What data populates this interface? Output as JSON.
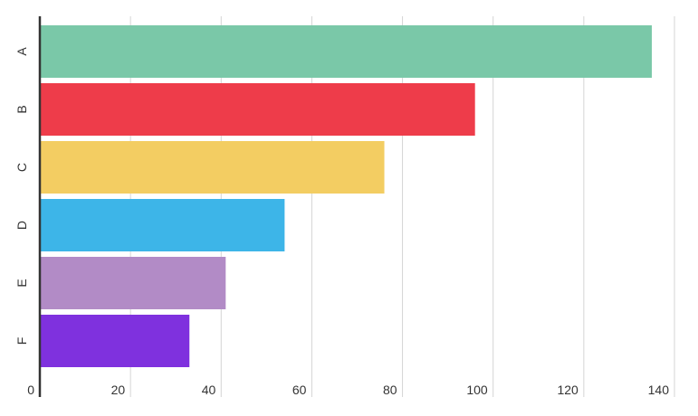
{
  "chart_data": {
    "type": "bar",
    "orientation": "horizontal",
    "categories": [
      "A",
      "B",
      "C",
      "D",
      "E",
      "F"
    ],
    "values": [
      135,
      96,
      76,
      54,
      41,
      33
    ],
    "colors": [
      "#7ac8a8",
      "#ee3c4a",
      "#f3cd62",
      "#3db5e8",
      "#b28bc6",
      "#7f31de"
    ],
    "xlim": [
      0,
      140
    ],
    "xticks": [
      0,
      20,
      40,
      60,
      80,
      100,
      120,
      140
    ],
    "grid": true,
    "title": "",
    "xlabel": "",
    "ylabel": ""
  }
}
